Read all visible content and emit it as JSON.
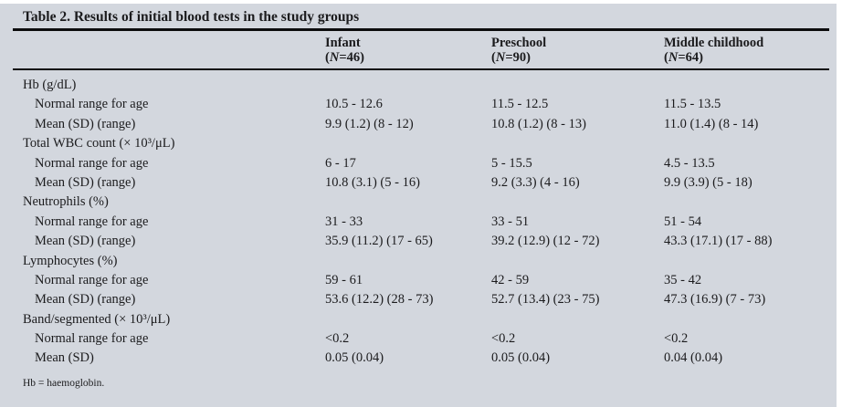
{
  "table": {
    "title": "Table 2. Results of initial blood tests in the study groups",
    "columns": [
      {
        "name": "Infant",
        "n_pre": "(",
        "n_it": "N",
        "n_post": "=46)"
      },
      {
        "name": "Preschool",
        "n_pre": "(",
        "n_it": "N",
        "n_post": "=90)"
      },
      {
        "name": "Middle childhood",
        "n_pre": "(",
        "n_it": "N",
        "n_post": "=64)"
      }
    ],
    "sections": [
      {
        "label": "Hb (g/dL)",
        "rows": [
          {
            "label": "Normal range for age",
            "values": [
              "10.5 - 12.6",
              "11.5 - 12.5",
              "11.5 - 13.5"
            ]
          },
          {
            "label": "Mean (SD) (range)",
            "values": [
              "9.9 (1.2) (8 - 12)",
              "10.8 (1.2) (8 - 13)",
              "11.0 (1.4) (8 - 14)"
            ]
          }
        ]
      },
      {
        "label": "Total WBC count (× 10³/μL)",
        "rows": [
          {
            "label": "Normal range for age",
            "values": [
              "6 - 17",
              "5 - 15.5",
              "4.5 - 13.5"
            ]
          },
          {
            "label": "Mean (SD) (range)",
            "values": [
              "10.8 (3.1) (5 - 16)",
              "9.2 (3.3) (4 - 16)",
              "9.9 (3.9) (5 - 18)"
            ]
          }
        ]
      },
      {
        "label": "Neutrophils (%)",
        "rows": [
          {
            "label": "Normal range for age",
            "values": [
              "31 - 33",
              "33 - 51",
              "51 - 54"
            ]
          },
          {
            "label": "Mean (SD) (range)",
            "values": [
              "35.9 (11.2) (17 - 65)",
              "39.2 (12.9) (12 - 72)",
              "43.3 (17.1) (17 - 88)"
            ]
          }
        ]
      },
      {
        "label": "Lymphocytes (%)",
        "rows": [
          {
            "label": "Normal range for age",
            "values": [
              "59 - 61",
              "42 - 59",
              "35 - 42"
            ]
          },
          {
            "label": "Mean (SD) (range)",
            "values": [
              "53.6 (12.2) (28 - 73)",
              "52.7 (13.4) (23 - 75)",
              "47.3 (16.9) (7 - 73)"
            ]
          }
        ]
      },
      {
        "label": "Band/segmented (× 10³/μL)",
        "rows": [
          {
            "label": "Normal range for age",
            "values": [
              "<0.2",
              "<0.2",
              "<0.2"
            ]
          },
          {
            "label": "Mean (SD)",
            "values": [
              "0.05 (0.04)",
              "0.05 (0.04)",
              "0.04 (0.04)"
            ]
          }
        ]
      }
    ],
    "footnote": "Hb = haemoglobin.",
    "colors": {
      "panel_background": "#d3d7de",
      "rule": "#0c0c0d",
      "text": "#1b1b1d"
    }
  }
}
